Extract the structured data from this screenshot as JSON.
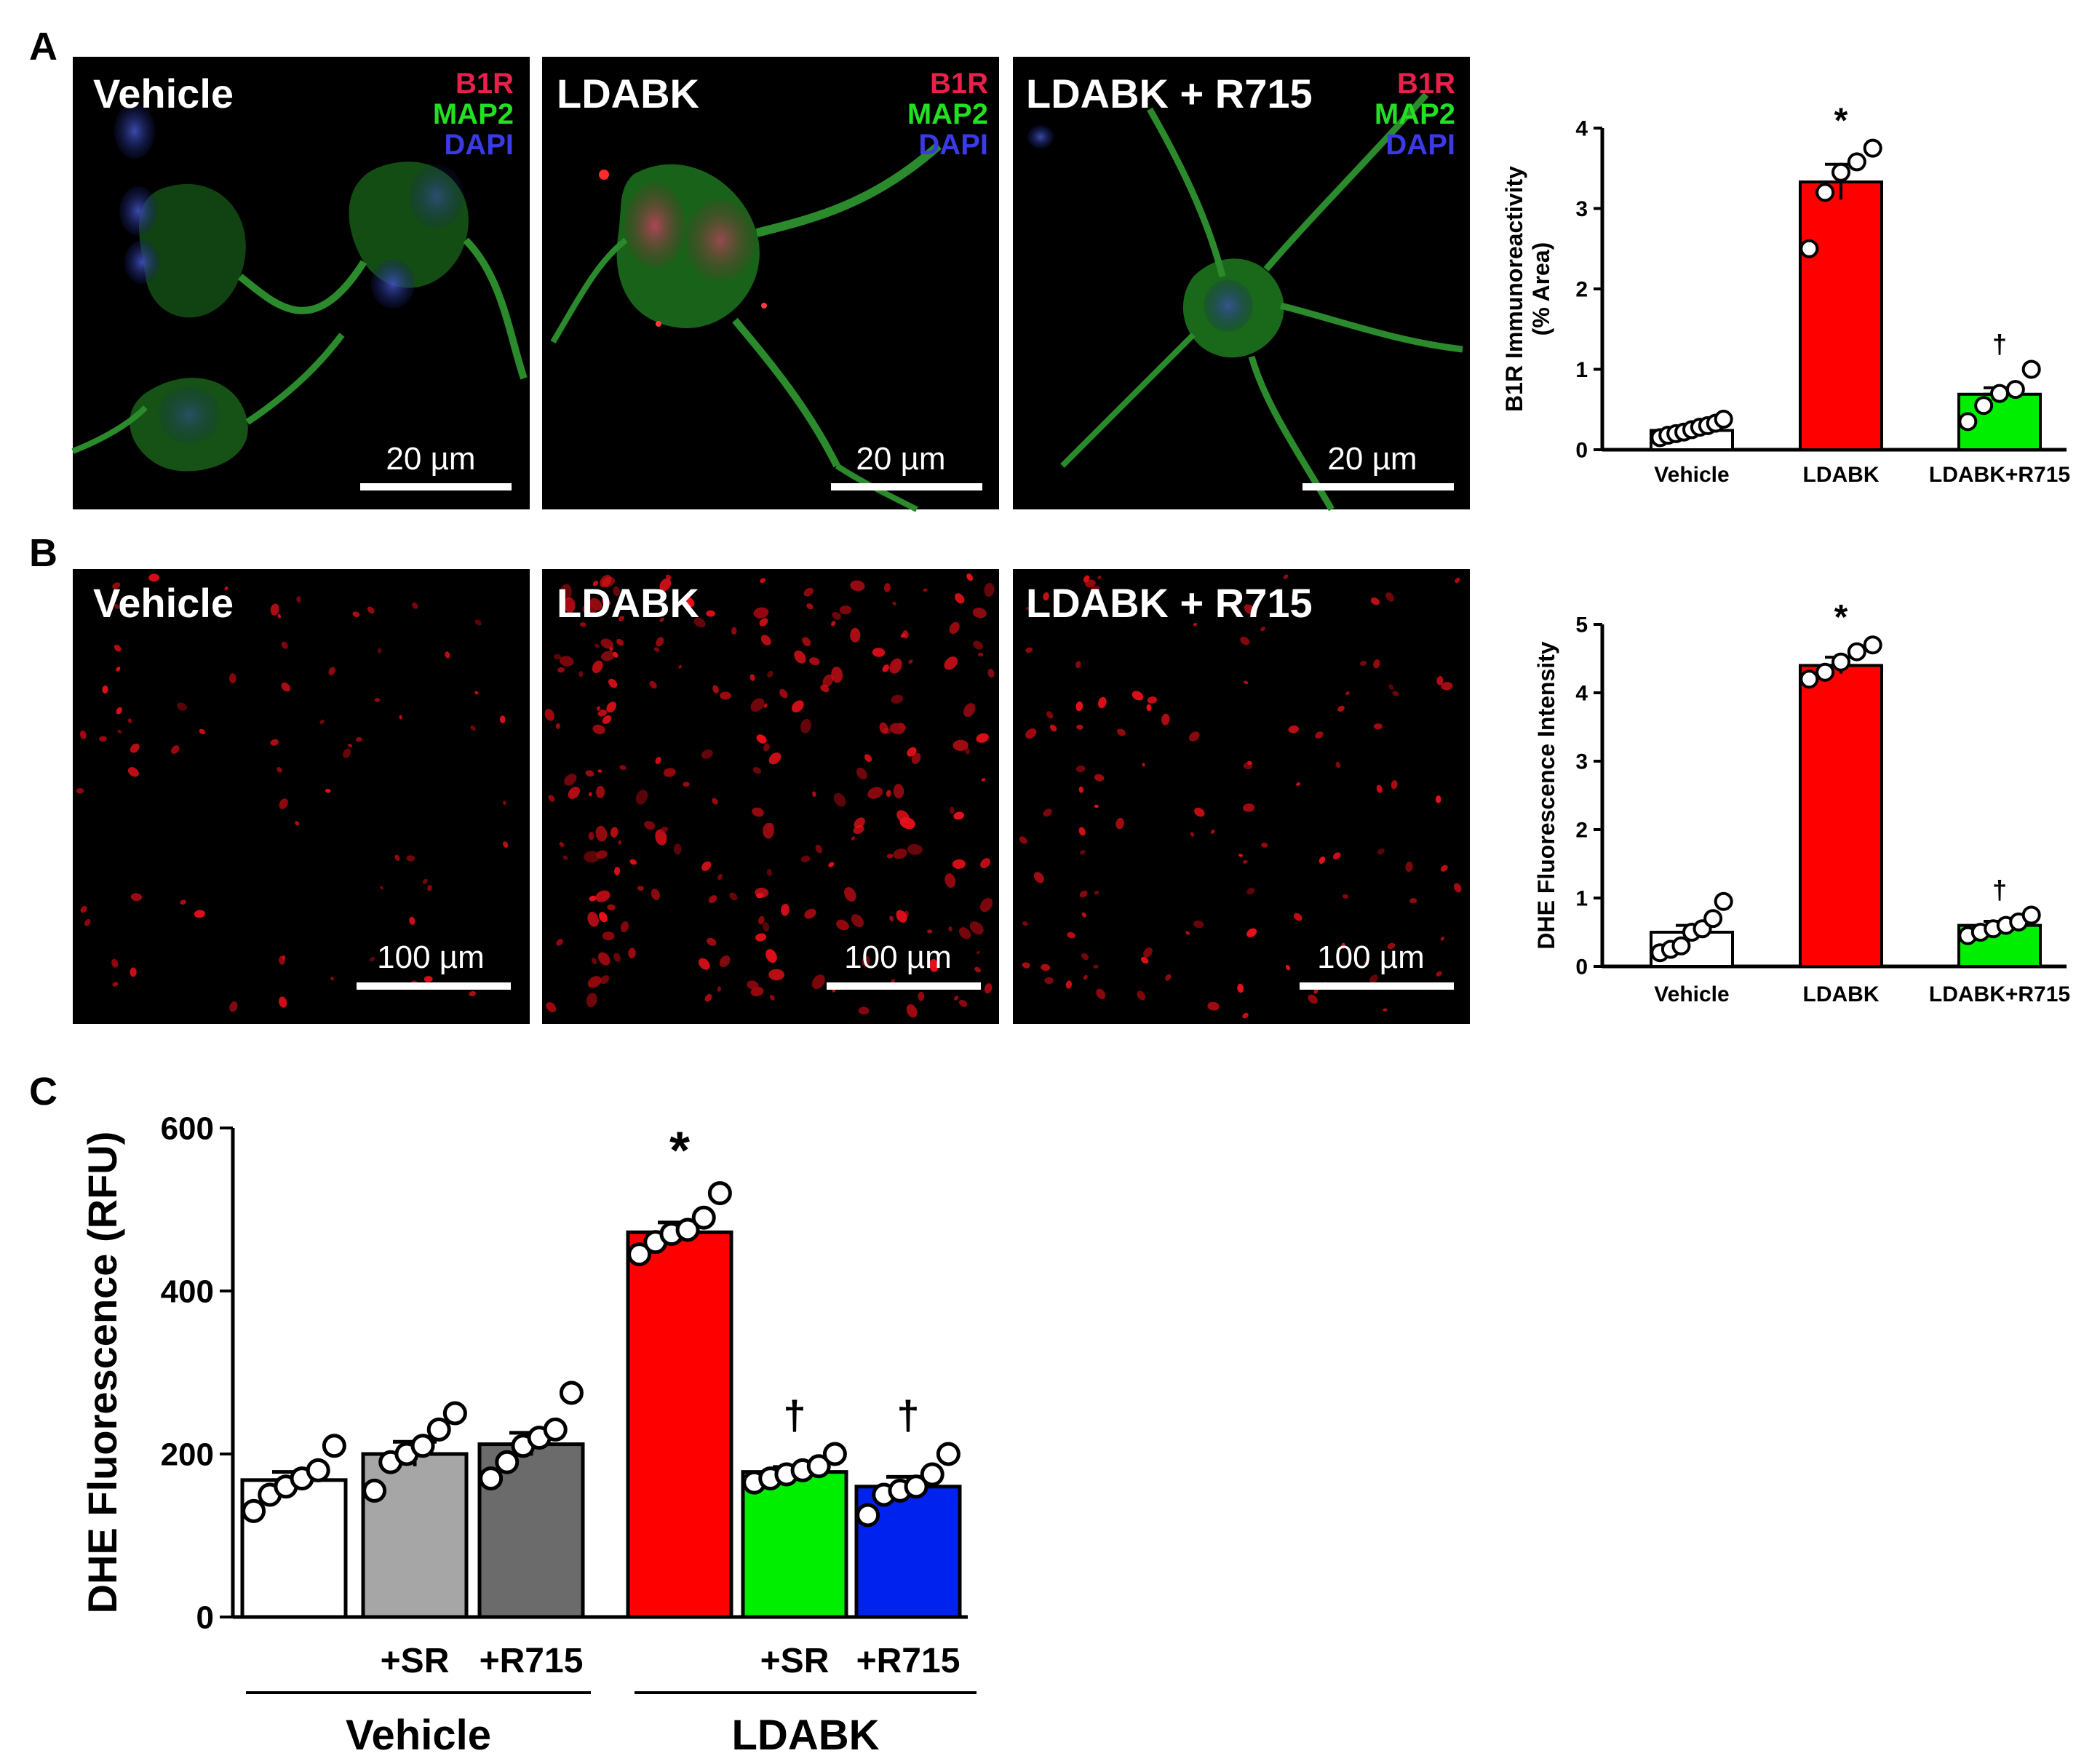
{
  "panel_labels": [
    "A",
    "B",
    "C"
  ],
  "image_panels": {
    "A": {
      "titles": [
        "Vehicle",
        "LDABK",
        "LDABK + R715"
      ],
      "stain_labels": [
        {
          "text": "B1R",
          "color": "#e8214b"
        },
        {
          "text": "MAP2",
          "color": "#22e022"
        },
        {
          "text": "DAPI",
          "color": "#3a3ae6"
        }
      ],
      "scale_bar": "20 µm"
    },
    "B": {
      "titles": [
        "Vehicle",
        "LDABK",
        "LDABK + R715"
      ],
      "scale_bar": "100 µm"
    }
  },
  "colors": {
    "vehicle": "#ffffff",
    "vehicle_sr": "#a6a6a6",
    "vehicle_r715": "#6b6b6b",
    "ldabk": "#ff0000",
    "ldabk_r715": "#00ee00",
    "ldabk_sr_r715_blue": "#0022ee"
  },
  "chart_data": [
    {
      "id": "A",
      "type": "bar",
      "categories": [
        "Vehicle",
        "LDABK",
        "LDABK+R715"
      ],
      "values": [
        0.24,
        3.33,
        0.69
      ],
      "sem": [
        0.04,
        0.22,
        0.08
      ],
      "colors": [
        "#ffffff",
        "#ff0000",
        "#00ee00"
      ],
      "points": [
        [
          0.15,
          0.18,
          0.2,
          0.22,
          0.25,
          0.28,
          0.3,
          0.33,
          0.38
        ],
        [
          2.5,
          3.2,
          3.45,
          3.58,
          3.75
        ],
        [
          0.35,
          0.55,
          0.7,
          0.75,
          1.0
        ]
      ],
      "annotations": [
        "",
        "*",
        "†"
      ],
      "ylabel_lines": [
        "B1R Immunoreactivity",
        "(% Area)"
      ],
      "yticks": [
        0,
        1,
        2,
        3,
        4
      ],
      "ylim": [
        0,
        4
      ]
    },
    {
      "id": "B",
      "type": "bar",
      "categories": [
        "Vehicle",
        "LDABK",
        "LDABK+R715"
      ],
      "values": [
        0.5,
        4.4,
        0.6
      ],
      "sem": [
        0.1,
        0.12,
        0.06
      ],
      "colors": [
        "#ffffff",
        "#ff0000",
        "#00ee00"
      ],
      "points": [
        [
          0.2,
          0.25,
          0.3,
          0.5,
          0.55,
          0.7,
          0.95
        ],
        [
          4.2,
          4.3,
          4.45,
          4.6,
          4.7
        ],
        [
          0.45,
          0.5,
          0.55,
          0.6,
          0.65,
          0.75
        ]
      ],
      "annotations": [
        "",
        "*",
        "†"
      ],
      "ylabel_lines": [
        "DHE Fluorescence Intensity"
      ],
      "yticks": [
        0,
        1,
        2,
        3,
        4,
        5
      ],
      "ylim": [
        0,
        5
      ]
    },
    {
      "id": "C",
      "type": "bar",
      "categories": [
        "",
        "+SR",
        "+R715",
        "",
        "+SR",
        "+R715"
      ],
      "group_labels": [
        "Vehicle",
        "LDABK"
      ],
      "values": [
        168,
        200,
        212,
        472,
        178,
        160
      ],
      "sem": [
        10,
        15,
        14,
        12,
        6,
        12
      ],
      "colors": [
        "#ffffff",
        "#a6a6a6",
        "#6b6b6b",
        "#ff0000",
        "#00ee00",
        "#0022ee"
      ],
      "points": [
        [
          130,
          150,
          160,
          170,
          180,
          210
        ],
        [
          155,
          190,
          200,
          210,
          230,
          250
        ],
        [
          170,
          190,
          210,
          220,
          230,
          275
        ],
        [
          445,
          460,
          470,
          475,
          490,
          520
        ],
        [
          165,
          170,
          175,
          180,
          185,
          200
        ],
        [
          125,
          150,
          155,
          160,
          175,
          200
        ]
      ],
      "annotations": [
        "",
        "",
        "",
        "*",
        "†",
        "†"
      ],
      "ylabel_lines": [
        "DHE Fluorescence (RFU)"
      ],
      "yticks": [
        0,
        200,
        400,
        600
      ],
      "ylim": [
        0,
        600
      ]
    }
  ]
}
